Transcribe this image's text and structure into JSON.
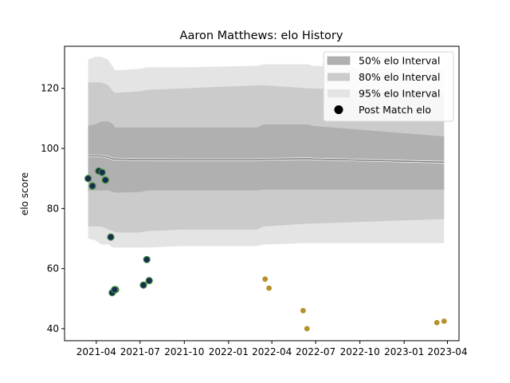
{
  "chart_data": {
    "type": "line",
    "title": "Aaron Matthews: elo History",
    "xlabel": "",
    "ylabel": "elo score",
    "xlim": [
      "2021-01-25",
      "2023-04-25"
    ],
    "ylim": [
      36,
      134
    ],
    "grid": false,
    "legend_position": "top-right",
    "x_ticks": [
      "2021-04",
      "2021-07",
      "2021-10",
      "2022-01",
      "2022-04",
      "2022-07",
      "2022-10",
      "2023-01",
      "2023-04"
    ],
    "y_ticks": [
      40,
      60,
      80,
      100,
      120
    ],
    "legend": [
      {
        "label": "50% elo Interval",
        "color": "#b0b0b0"
      },
      {
        "label": "80% elo Interval",
        "color": "#cbcbcb"
      },
      {
        "label": "95% elo Interval",
        "color": "#e4e4e4"
      },
      {
        "label": "Post Match elo",
        "color": "#000000"
      }
    ],
    "bands": {
      "x": [
        "2021-03-15",
        "2021-03-29",
        "2021-04-12",
        "2021-04-26",
        "2021-05-06",
        "2021-05-10",
        "2021-07-01",
        "2021-07-15",
        "2021-10-01",
        "2022-03-01",
        "2022-03-15",
        "2022-06-15",
        "2022-06-25",
        "2023-03-25"
      ],
      "p95_upper": [
        129.5,
        130.5,
        130.5,
        129.5,
        127,
        126,
        126.5,
        127,
        127,
        127.5,
        128,
        128,
        127.5,
        126
      ],
      "p80_upper": [
        122,
        122,
        122,
        121,
        119,
        118.5,
        119,
        119.5,
        120,
        121,
        121,
        120,
        120,
        118
      ],
      "p50_upper": [
        107.5,
        108,
        109,
        109,
        108,
        107,
        107,
        107,
        107,
        107,
        108,
        108,
        107.5,
        104
      ],
      "mean": [
        97.5,
        97.5,
        97.5,
        97,
        96.5,
        96.5,
        96.3,
        96.3,
        96.2,
        96.2,
        96.4,
        96.6,
        96.5,
        95.4
      ],
      "p50_lower": [
        86,
        86,
        86,
        86,
        85.5,
        85.3,
        85.5,
        86,
        86,
        86,
        86.3,
        86.3,
        86.3,
        86.3
      ],
      "p80_lower": [
        74,
        74,
        74,
        73,
        72.5,
        72,
        72,
        72.5,
        73,
        73,
        74,
        75,
        75,
        76.5
      ],
      "p95_lower": [
        70,
        69.5,
        68,
        68,
        67,
        67,
        67,
        67,
        67.5,
        67.5,
        68,
        68.5,
        68.5,
        68.5
      ]
    },
    "series": [
      {
        "name": "Post Match elo",
        "color": "#1b2a52",
        "edge_color": "#3d8f3d",
        "x": [
          "2021-03-15",
          "2021-03-24",
          "2021-04-06",
          "2021-04-13",
          "2021-04-20",
          "2021-05-01",
          "2021-05-04",
          "2021-05-11",
          "2021-05-09",
          "2021-07-08",
          "2021-07-15",
          "2021-07-20"
        ],
        "y": [
          90,
          87.5,
          92.5,
          92,
          89.5,
          70.5,
          52,
          53,
          53,
          54.5,
          63,
          56
        ]
      },
      {
        "name": "",
        "color": "#b5902c",
        "edge_color": "#b5902c",
        "x": [
          "2022-03-18",
          "2022-03-26",
          "2022-06-05",
          "2022-06-13",
          "2023-03-10",
          "2023-03-25"
        ],
        "y": [
          56.5,
          53.5,
          46,
          40,
          42,
          42.5
        ]
      }
    ]
  }
}
